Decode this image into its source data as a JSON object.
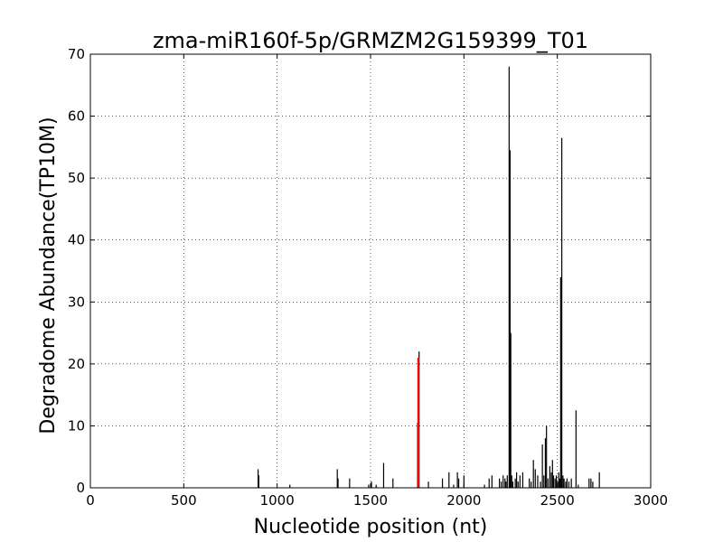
{
  "chart_data": {
    "type": "bar",
    "title": "zma-miR160f-5p/GRMZM2G159399_T01",
    "xlabel": "Nucleotide position (nt)",
    "ylabel": "Degradome Abundance(TP10M)",
    "xlim": [
      0,
      3000
    ],
    "ylim": [
      0,
      70
    ],
    "xticks": [
      "0",
      "500",
      "1000",
      "1500",
      "2000",
      "2500",
      "3000"
    ],
    "yticks": [
      "0",
      "10",
      "20",
      "30",
      "40",
      "50",
      "60",
      "70"
    ],
    "grid": true,
    "legend": "none",
    "series": [
      {
        "color": "#000000",
        "points": [
          {
            "x": 898,
            "y": 3.0
          },
          {
            "x": 902,
            "y": 2.0
          },
          {
            "x": 1068,
            "y": 0.5
          },
          {
            "x": 1322,
            "y": 3.0
          },
          {
            "x": 1326,
            "y": 1.5
          },
          {
            "x": 1388,
            "y": 1.5
          },
          {
            "x": 1490,
            "y": 0.5
          },
          {
            "x": 1505,
            "y": 1.0
          },
          {
            "x": 1530,
            "y": 0.5
          },
          {
            "x": 1570,
            "y": 4.0
          },
          {
            "x": 1620,
            "y": 1.5
          },
          {
            "x": 1752,
            "y": 10.5
          },
          {
            "x": 1760,
            "y": 22.0
          },
          {
            "x": 1810,
            "y": 1.0
          },
          {
            "x": 1885,
            "y": 1.5
          },
          {
            "x": 1920,
            "y": 2.5
          },
          {
            "x": 1945,
            "y": 0.5
          },
          {
            "x": 1965,
            "y": 2.5
          },
          {
            "x": 1972,
            "y": 1.5
          },
          {
            "x": 2000,
            "y": 2.0
          },
          {
            "x": 2110,
            "y": 0.5
          },
          {
            "x": 2135,
            "y": 1.5
          },
          {
            "x": 2150,
            "y": 2.0
          },
          {
            "x": 2190,
            "y": 1.5
          },
          {
            "x": 2200,
            "y": 1.0
          },
          {
            "x": 2210,
            "y": 2.0
          },
          {
            "x": 2220,
            "y": 1.5
          },
          {
            "x": 2225,
            "y": 1.0
          },
          {
            "x": 2232,
            "y": 2.0
          },
          {
            "x": 2242,
            "y": 68.0
          },
          {
            "x": 2247,
            "y": 54.5
          },
          {
            "x": 2251,
            "y": 25.0
          },
          {
            "x": 2256,
            "y": 2.0
          },
          {
            "x": 2262,
            "y": 1.0
          },
          {
            "x": 2275,
            "y": 1.5
          },
          {
            "x": 2282,
            "y": 2.5
          },
          {
            "x": 2290,
            "y": 1.0
          },
          {
            "x": 2300,
            "y": 2.0
          },
          {
            "x": 2315,
            "y": 2.5
          },
          {
            "x": 2350,
            "y": 1.5
          },
          {
            "x": 2360,
            "y": 1.0
          },
          {
            "x": 2372,
            "y": 4.5
          },
          {
            "x": 2382,
            "y": 3.0
          },
          {
            "x": 2395,
            "y": 2.0
          },
          {
            "x": 2410,
            "y": 1.0
          },
          {
            "x": 2420,
            "y": 7.0
          },
          {
            "x": 2428,
            "y": 2.0
          },
          {
            "x": 2436,
            "y": 8.0
          },
          {
            "x": 2442,
            "y": 10.0
          },
          {
            "x": 2450,
            "y": 1.5
          },
          {
            "x": 2460,
            "y": 3.5
          },
          {
            "x": 2468,
            "y": 2.5
          },
          {
            "x": 2474,
            "y": 4.5
          },
          {
            "x": 2480,
            "y": 2.0
          },
          {
            "x": 2488,
            "y": 1.5
          },
          {
            "x": 2495,
            "y": 2.0
          },
          {
            "x": 2502,
            "y": 1.0
          },
          {
            "x": 2508,
            "y": 2.5
          },
          {
            "x": 2513,
            "y": 1.5
          },
          {
            "x": 2518,
            "y": 34.0
          },
          {
            "x": 2524,
            "y": 56.5
          },
          {
            "x": 2530,
            "y": 2.0
          },
          {
            "x": 2536,
            "y": 1.5
          },
          {
            "x": 2545,
            "y": 1.0
          },
          {
            "x": 2552,
            "y": 1.5
          },
          {
            "x": 2562,
            "y": 1.0
          },
          {
            "x": 2575,
            "y": 1.5
          },
          {
            "x": 2600,
            "y": 12.5
          },
          {
            "x": 2612,
            "y": 0.5
          },
          {
            "x": 2670,
            "y": 1.5
          },
          {
            "x": 2680,
            "y": 1.5
          },
          {
            "x": 2690,
            "y": 1.0
          },
          {
            "x": 2725,
            "y": 2.5
          }
        ]
      },
      {
        "color": "#ff0000",
        "points": [
          {
            "x": 1756,
            "y": 21.0
          }
        ]
      }
    ]
  }
}
